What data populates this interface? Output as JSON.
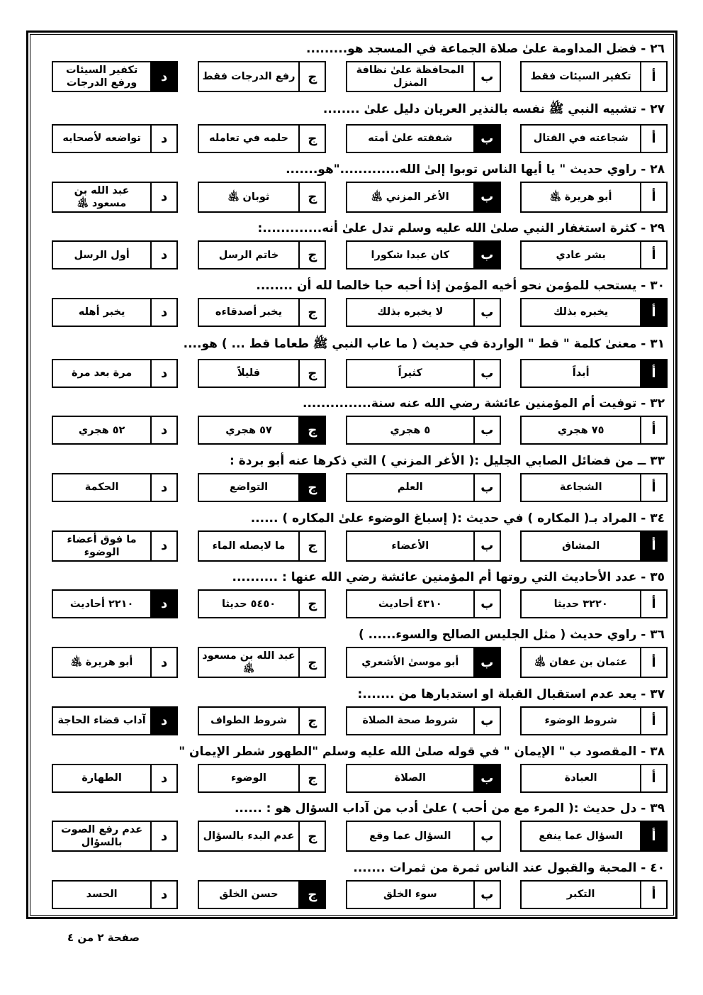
{
  "page": {
    "footer": "صفحة ٢ من ٤"
  },
  "colors": {
    "ink": "#000000",
    "paper": "#ffffff",
    "correct_bg": "#000000",
    "correct_fg": "#ffffff"
  },
  "questions": [
    {
      "id": 26,
      "heading": "٢٦ - فضل المداومة علىٰ صلاة الجماعة في المسجد هو.........",
      "options": [
        {
          "letter": "أ",
          "text": "تكفير السيئات فقط",
          "correct": false
        },
        {
          "letter": "ب",
          "text": "المحافظة علىٰ نظافة المنزل",
          "correct": false
        },
        {
          "letter": "ج",
          "text": "رفع الدرجات فقط",
          "correct": false
        },
        {
          "letter": "د",
          "text": "تكفير السيئات ورفع الدرجات",
          "correct": true
        }
      ]
    },
    {
      "id": 27,
      "heading": "٢٧ - تشبيه النبي ﷺ نفسه بالنذير العريان دليل علىٰ ........",
      "options": [
        {
          "letter": "أ",
          "text": "شجاعته في القتال",
          "correct": false
        },
        {
          "letter": "ب",
          "text": "شفقته علىٰ أمته",
          "correct": true
        },
        {
          "letter": "ج",
          "text": "حلمه في تعامله",
          "correct": false
        },
        {
          "letter": "د",
          "text": "تواضعه لأصحابه",
          "correct": false
        }
      ]
    },
    {
      "id": 28,
      "heading": "٢٨ - راوي حديث \" يا أيها الناس توبوا إلىٰ الله.............\"هو.......",
      "options": [
        {
          "letter": "أ",
          "text": "أبو هريرة ﵁",
          "correct": false
        },
        {
          "letter": "ب",
          "text": "الأغر المزني ﵁",
          "correct": true
        },
        {
          "letter": "ج",
          "text": "ثوبان ﵁",
          "correct": false
        },
        {
          "letter": "د",
          "text": "عبد الله بن مسعود ﵁",
          "correct": false
        }
      ]
    },
    {
      "id": 29,
      "heading": "٢٩ - كثرة استغفار النبي صلىٰ الله عليه وسلم تدل علىٰ أنه.............:",
      "options": [
        {
          "letter": "أ",
          "text": "بشر عادي",
          "correct": false
        },
        {
          "letter": "ب",
          "text": "كان عبدا شكورا",
          "correct": true
        },
        {
          "letter": "ج",
          "text": "خاتم الرسل",
          "correct": false
        },
        {
          "letter": "د",
          "text": "أول الرسل",
          "correct": false
        }
      ]
    },
    {
      "id": 30,
      "heading": "٣٠ - يستحب للمؤمن نحو أخيه المؤمن إذا أحبه حبا خالصا لله أن ........",
      "options": [
        {
          "letter": "أ",
          "text": "يخبره بذلك",
          "correct": true
        },
        {
          "letter": "ب",
          "text": "لا يخبره بذلك",
          "correct": false
        },
        {
          "letter": "ج",
          "text": "يخبر أصدقاءه",
          "correct": false
        },
        {
          "letter": "د",
          "text": "يخبر أهله",
          "correct": false
        }
      ]
    },
    {
      "id": 31,
      "heading": "٣١ - معنىٰ كلمة \" قط \" الواردة في حديث ( ما عاب النبي ﷺ طعاما قط ... ) هو....",
      "options": [
        {
          "letter": "أ",
          "text": "أبداً",
          "correct": true
        },
        {
          "letter": "ب",
          "text": "كثيراً",
          "correct": false
        },
        {
          "letter": "ج",
          "text": "قليلاً",
          "correct": false
        },
        {
          "letter": "د",
          "text": "مرة بعد مرة",
          "correct": false
        }
      ]
    },
    {
      "id": 32,
      "heading": "٣٢ - توفيت أم المؤمنين عائشة رضي الله عنه سنة...............",
      "options": [
        {
          "letter": "أ",
          "text": "٧٥ هجري",
          "correct": false
        },
        {
          "letter": "ب",
          "text": "٥ هجري",
          "correct": false
        },
        {
          "letter": "ج",
          "text": "٥٧ هجري",
          "correct": true
        },
        {
          "letter": "د",
          "text": "٥٢ هجري",
          "correct": false
        }
      ]
    },
    {
      "id": 33,
      "heading": "٣٣ ــ من فضائل الصابي الجليل :( الأغر المزني ) التي ذكرها عنه أبو بردة :",
      "options": [
        {
          "letter": "أ",
          "text": "الشجاعة",
          "correct": false
        },
        {
          "letter": "ب",
          "text": "العلم",
          "correct": false
        },
        {
          "letter": "ج",
          "text": "التواضع",
          "correct": true
        },
        {
          "letter": "د",
          "text": "الحكمة",
          "correct": false
        }
      ]
    },
    {
      "id": 34,
      "heading": "٣٤ - المراد بـ( المكاره ) في حديث :( إسباغ الوضوء علىٰ المكاره ) ......",
      "options": [
        {
          "letter": "أ",
          "text": "المشاق",
          "correct": true
        },
        {
          "letter": "ب",
          "text": "الأعضاء",
          "correct": false
        },
        {
          "letter": "ج",
          "text": "ما لايصله الماء",
          "correct": false
        },
        {
          "letter": "د",
          "text": "ما فوق أعضاء الوضوء",
          "correct": false
        }
      ]
    },
    {
      "id": 35,
      "heading": "٣٥ - عدد الأحاديث التي روتها أم المؤمنين عائشة رضي الله عنها : ..........",
      "options": [
        {
          "letter": "أ",
          "text": "٣٢٢٠ حديثا",
          "correct": false
        },
        {
          "letter": "ب",
          "text": "٤٣١٠ أحاديث",
          "correct": false
        },
        {
          "letter": "ج",
          "text": "٥٤٥٠ حديثا",
          "correct": false
        },
        {
          "letter": "د",
          "text": "٢٢١٠ أحاديث",
          "correct": true
        }
      ]
    },
    {
      "id": 36,
      "heading": "٣٦ - راوي حديث ( مثل الجليس الصالح والسوء...... )",
      "options": [
        {
          "letter": "أ",
          "text": "عثمان بن عفان ﵁",
          "correct": false
        },
        {
          "letter": "ب",
          "text": "أبو موسىٰ الأشعري",
          "correct": true
        },
        {
          "letter": "ج",
          "text": "عبد الله بن مسعود ﵁",
          "correct": false
        },
        {
          "letter": "د",
          "text": "أبو هريرة ﵁",
          "correct": false
        }
      ]
    },
    {
      "id": 37,
      "heading": "٣٧ - يعد عدم استقبال القبلة او استدبارها من .......:",
      "options": [
        {
          "letter": "أ",
          "text": "شروط الوضوء",
          "correct": false
        },
        {
          "letter": "ب",
          "text": "شروط صحة الصلاة",
          "correct": false
        },
        {
          "letter": "ج",
          "text": "شروط الطواف",
          "correct": false
        },
        {
          "letter": "د",
          "text": "آداب قضاء الحاجة",
          "correct": true
        }
      ]
    },
    {
      "id": 38,
      "heading": "٣٨ - المقصود ب \" الإيمان \" في قوله صلىٰ الله عليه وسلم \"الطهور شطر الإيمان \"",
      "options": [
        {
          "letter": "أ",
          "text": "العبادة",
          "correct": false
        },
        {
          "letter": "ب",
          "text": "الصلاة",
          "correct": true
        },
        {
          "letter": "ج",
          "text": "الوضوء",
          "correct": false
        },
        {
          "letter": "د",
          "text": "الطهارة",
          "correct": false
        }
      ]
    },
    {
      "id": 39,
      "heading": "٣٩ - دل حديث :( المرء مع من أحب ) علىٰ أدب من آداب السؤال هو : ......",
      "options": [
        {
          "letter": "أ",
          "text": "السؤال عما ينفع",
          "correct": true
        },
        {
          "letter": "ب",
          "text": "السؤال عما وقع",
          "correct": false
        },
        {
          "letter": "ج",
          "text": "عدم البدء بالسؤال",
          "correct": false
        },
        {
          "letter": "د",
          "text": "عدم رفع الصوت بالسؤال",
          "correct": false
        }
      ]
    },
    {
      "id": 40,
      "heading": "٤٠ - المحبة والقبول عند الناس ثمرة من ثمرات .......",
      "options": [
        {
          "letter": "أ",
          "text": "التكبر",
          "correct": false
        },
        {
          "letter": "ب",
          "text": "سوء الخلق",
          "correct": false
        },
        {
          "letter": "ج",
          "text": "حسن الخلق",
          "correct": true
        },
        {
          "letter": "د",
          "text": "الحسد",
          "correct": false
        }
      ]
    }
  ]
}
